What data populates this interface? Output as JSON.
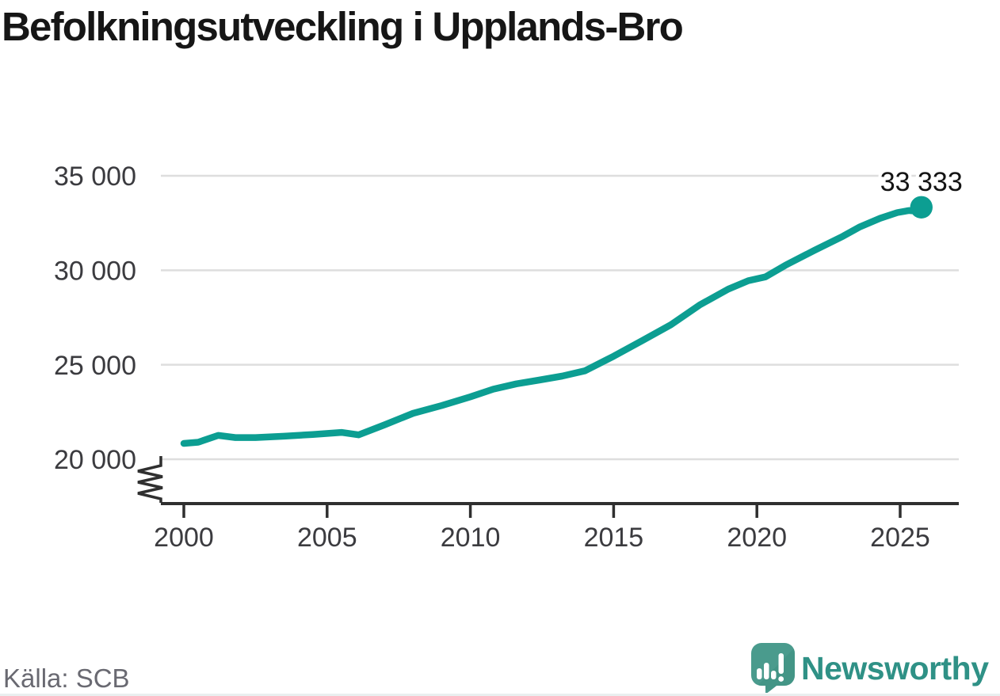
{
  "title": "Befolkningsutveckling i Upplands-Bro",
  "source_note": "Källa: SCB",
  "logo": {
    "brand": "Newsworthy",
    "icon": "speech-bubble-with-bar-chart-and-exclamation"
  },
  "colors": {
    "line": "#0c9e92",
    "grid": "#dedede",
    "axis": "#2f2f2f",
    "tick_label": "#3b3b3f",
    "title": "#161616",
    "source": "#696971",
    "logo_text": "#2f9186",
    "logo_bubble": "#4a9b8d",
    "logo_bubble_shade": "#3e9082"
  },
  "chart_data": {
    "type": "line",
    "title": "Befolkningsutveckling i Upplands-Bro",
    "xlabel": "",
    "ylabel": "",
    "grid": "horizontal",
    "legend": "none",
    "x_axis": {
      "ticks": [
        2000,
        2005,
        2010,
        2015,
        2020,
        2025
      ],
      "tick_labels": [
        "2000",
        "2005",
        "2010",
        "2015",
        "2020",
        "2025"
      ],
      "range_years": [
        1999.2,
        2027
      ]
    },
    "y_axis": {
      "ticks": [
        {
          "value": 20000,
          "label": "20 000"
        },
        {
          "value": 25000,
          "label": "25 000"
        },
        {
          "value": 30000,
          "label": "30 000"
        },
        {
          "value": 35000,
          "label": "35 000"
        }
      ],
      "axis_break_below": 20000,
      "displayed_range": [
        20000,
        35500
      ]
    },
    "points": [
      [
        2000.0,
        20840
      ],
      [
        2000.5,
        20900
      ],
      [
        2001.2,
        21260
      ],
      [
        2001.8,
        21150
      ],
      [
        2002.5,
        21150
      ],
      [
        2003.5,
        21220
      ],
      [
        2004.5,
        21310
      ],
      [
        2005.5,
        21420
      ],
      [
        2006.1,
        21290
      ],
      [
        2007.0,
        21820
      ],
      [
        2008.0,
        22430
      ],
      [
        2009.0,
        22840
      ],
      [
        2010.0,
        23300
      ],
      [
        2010.8,
        23710
      ],
      [
        2011.6,
        23990
      ],
      [
        2012.4,
        24190
      ],
      [
        2013.2,
        24400
      ],
      [
        2014.0,
        24680
      ],
      [
        2015.0,
        25450
      ],
      [
        2016.0,
        26280
      ],
      [
        2017.0,
        27120
      ],
      [
        2018.0,
        28160
      ],
      [
        2019.0,
        29000
      ],
      [
        2019.7,
        29450
      ],
      [
        2020.3,
        29650
      ],
      [
        2021.0,
        30270
      ],
      [
        2022.0,
        31050
      ],
      [
        2023.0,
        31800
      ],
      [
        2023.6,
        32300
      ],
      [
        2024.3,
        32750
      ],
      [
        2024.9,
        33050
      ],
      [
        2025.3,
        33160
      ],
      [
        2025.55,
        33130
      ],
      [
        2025.74,
        33333
      ]
    ],
    "last_point": {
      "x": 2025.74,
      "value": 33333,
      "label": "33 333"
    }
  }
}
